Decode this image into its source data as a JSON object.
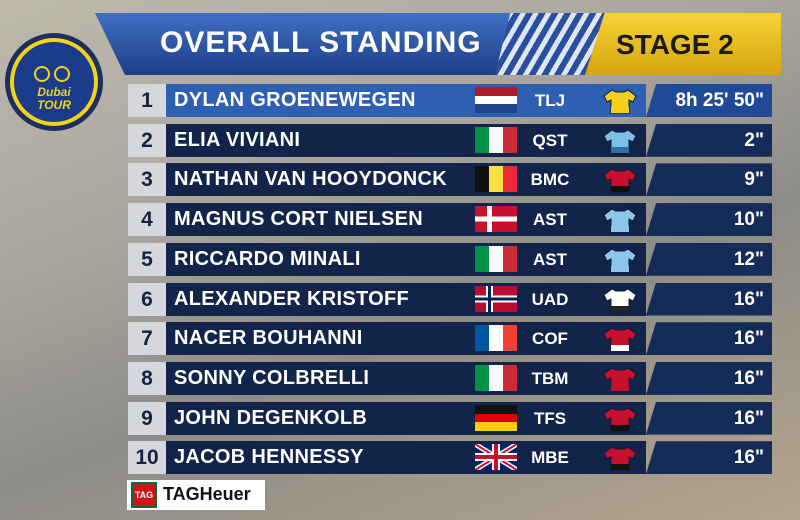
{
  "header": {
    "title": "OVERALL STANDING",
    "stage": "STAGE 2"
  },
  "logo": {
    "line1": "Dubai",
    "line2": "TOUR"
  },
  "standings": {
    "rows": [
      {
        "rank": "1",
        "name": "DYLAN GROENEWEGEN",
        "team": "TLJ",
        "time": "8h 25' 50\""
      },
      {
        "rank": "2",
        "name": "ELIA VIVIANI",
        "team": "QST",
        "time": "2\""
      },
      {
        "rank": "3",
        "name": "NATHAN VAN HOOYDONCK",
        "team": "BMC",
        "time": "9\""
      },
      {
        "rank": "4",
        "name": "MAGNUS CORT NIELSEN",
        "team": "AST",
        "time": "10\""
      },
      {
        "rank": "5",
        "name": "RICCARDO MINALI",
        "team": "AST",
        "time": "12\""
      },
      {
        "rank": "6",
        "name": "ALEXANDER KRISTOFF",
        "team": "UAD",
        "time": "16\""
      },
      {
        "rank": "7",
        "name": "NACER BOUHANNI",
        "team": "COF",
        "time": "16\""
      },
      {
        "rank": "8",
        "name": "SONNY COLBRELLI",
        "team": "TBM",
        "time": "16\""
      },
      {
        "rank": "9",
        "name": "JOHN DEGENKOLB",
        "team": "TFS",
        "time": "16\""
      },
      {
        "rank": "10",
        "name": "JACOB HENNESSY",
        "team": "MBE",
        "time": "16\""
      }
    ]
  },
  "sponsor": {
    "mark": "TAG",
    "name": "TAGHeuer"
  }
}
